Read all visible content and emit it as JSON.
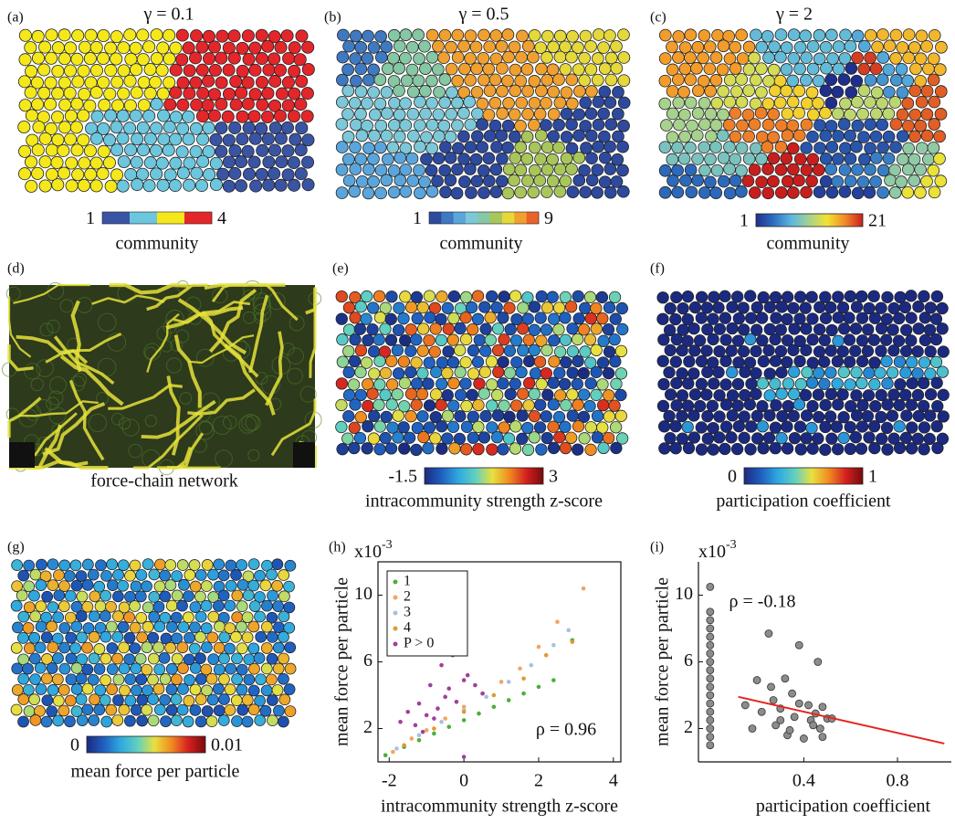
{
  "chart_data": [
    {
      "type": "particle-map",
      "label": "(a)",
      "title": "γ = 0.1",
      "colorbar": {
        "label": "community",
        "clim": [
          1,
          4
        ],
        "ticks": [
          1,
          4
        ],
        "gradient": false,
        "colors": [
          "#3a54a4",
          "#6cc6de",
          "#f4e81a",
          "#e3262a"
        ]
      }
    },
    {
      "type": "particle-map",
      "label": "(b)",
      "title": "γ = 0.5",
      "colorbar": {
        "label": "community",
        "clim": [
          1,
          9
        ],
        "ticks": [
          1,
          9
        ],
        "gradient": false,
        "colors": [
          "#2e4a9e",
          "#3f79c2",
          "#5aa6dc",
          "#7cc8d8",
          "#86c7a4",
          "#a8c65a",
          "#e5d83a",
          "#f0a030",
          "#e8632a"
        ]
      }
    },
    {
      "type": "particle-map",
      "label": "(c)",
      "title": "γ = 2",
      "colorbar": {
        "label": "community",
        "clim": [
          1,
          21
        ],
        "ticks": [
          1,
          21
        ],
        "gradient": true,
        "colors": [
          "#1f2f8c",
          "#2f6fc0",
          "#5cb8e0",
          "#a6d28c",
          "#f2e330",
          "#f28a2a",
          "#c81e1e"
        ]
      }
    },
    {
      "type": "image",
      "label": "(d)",
      "caption": "force-chain network"
    },
    {
      "type": "particle-map",
      "label": "(e)",
      "colorbar": {
        "label": "intracommunity strength z-score",
        "clim": [
          -1.5,
          3
        ],
        "ticks": [
          -1.5,
          3
        ],
        "gradient": true,
        "colors": [
          "#1b2a80",
          "#1f5fc0",
          "#2fa8e0",
          "#60d0c0",
          "#e8e040",
          "#f08a20",
          "#d42020",
          "#7a0a0a"
        ]
      }
    },
    {
      "type": "particle-map",
      "label": "(f)",
      "colorbar": {
        "label": "participation coefficient",
        "clim": [
          0,
          1
        ],
        "ticks": [
          0,
          1
        ],
        "gradient": true,
        "colors": [
          "#1b2a80",
          "#1f5fc0",
          "#2fa8e0",
          "#60d0c0",
          "#e8e040",
          "#f08a20",
          "#d42020",
          "#7a0a0a"
        ]
      }
    },
    {
      "type": "particle-map",
      "label": "(g)",
      "colorbar": {
        "label": "mean force per particle",
        "clim": [
          0,
          0.01
        ],
        "ticks": [
          0,
          0.01
        ],
        "gradient": true,
        "colors": [
          "#1b2a80",
          "#1f5fc0",
          "#2fa8e0",
          "#60d0c0",
          "#e8e040",
          "#f08a20",
          "#d42020",
          "#7a0a0a"
        ]
      }
    },
    {
      "type": "scatter",
      "label": "(h)",
      "y_multiplier_base": "x10",
      "y_multiplier_exponent": "-3",
      "x_label": "intracommunity strength z-score",
      "y_label": "mean force per particle",
      "annotation": "ρ = 0.96",
      "box": true,
      "legend": "upper left",
      "xlim": [
        -2.3,
        4.2
      ],
      "xticks": [
        -2,
        0,
        2,
        4
      ],
      "ylim": [
        0,
        12
      ],
      "yticks": [
        2,
        6,
        10
      ],
      "series": [
        {
          "name": "1",
          "color": "#4caf3a",
          "x": [
            -2.1,
            -1.6,
            -1.2,
            -0.8,
            -0.4,
            0,
            0.4,
            0.8,
            1.2,
            1.6,
            2.0,
            2.4,
            2.9
          ],
          "values": [
            0.4,
            0.9,
            1.3,
            1.7,
            2.1,
            2.5,
            2.9,
            3.3,
            3.7,
            4.1,
            4.5,
            4.9,
            7.3
          ]
        },
        {
          "name": "2",
          "color": "#f4a460",
          "x": [
            -1.9,
            -1.4,
            -1.0,
            -0.5,
            0,
            0.5,
            1.0,
            1.5,
            2.0,
            2.5,
            3.2
          ],
          "values": [
            0.6,
            1.4,
            1.9,
            2.6,
            3.3,
            4.1,
            4.8,
            5.6,
            6.9,
            8.4,
            10.4
          ]
        },
        {
          "name": "3",
          "color": "#a8c0e0",
          "x": [
            -1.8,
            -1.2,
            -0.6,
            0,
            0.6,
            1.2,
            1.8,
            2.4,
            2.8
          ],
          "values": [
            0.8,
            1.6,
            2.4,
            3.1,
            3.9,
            4.8,
            5.8,
            7.0,
            7.9
          ]
        },
        {
          "name": "4",
          "color": "#e09a30",
          "x": [
            -1.6,
            -0.8,
            0,
            0.8,
            1.6,
            2.2,
            2.9
          ],
          "values": [
            1.0,
            2.0,
            3.0,
            4.0,
            5.0,
            6.4,
            7.2
          ]
        },
        {
          "name": "P > 0",
          "color": "#a0409a",
          "x": [
            -1.7,
            -1.5,
            -1.3,
            -1.2,
            -1.0,
            -0.9,
            -0.7,
            -0.6,
            -0.5,
            -0.4,
            -0.3,
            -0.2,
            0,
            0.1,
            0.3,
            0.5,
            -1.1,
            -0.8,
            0
          ],
          "values": [
            2.4,
            3.0,
            2.2,
            3.5,
            2.8,
            4.6,
            3.2,
            5.8,
            3.9,
            4.4,
            6.4,
            3.6,
            4.9,
            5.2,
            4.6,
            4.1,
            1.8,
            2.6,
            0.3
          ]
        }
      ]
    },
    {
      "type": "scatter",
      "label": "(i)",
      "y_multiplier_base": "x10",
      "y_multiplier_exponent": "-3",
      "x_label": "participation coefficient",
      "y_label": "mean force per particle",
      "annotation": "ρ = -0.18",
      "box": false,
      "xlim": [
        -0.05,
        1.03
      ],
      "xticks": [
        0.4,
        0.8
      ],
      "ylim": [
        0,
        12
      ],
      "yticks": [
        2,
        6,
        10
      ],
      "color": "#8c8c8c",
      "x": [
        0,
        0,
        0,
        0,
        0,
        0,
        0,
        0,
        0,
        0,
        0,
        0,
        0,
        0,
        0,
        0,
        0,
        0,
        0.15,
        0.18,
        0.22,
        0.25,
        0.26,
        0.28,
        0.3,
        0.32,
        0.33,
        0.35,
        0.36,
        0.38,
        0.4,
        0.42,
        0.43,
        0.45,
        0.46,
        0.47,
        0.48,
        0.5,
        0.52,
        0.2,
        0.3,
        0.38,
        0.44,
        0.48,
        0.34,
        0.27
      ],
      "values": [
        1.0,
        1.5,
        2.0,
        2.5,
        3.0,
        3.5,
        4.0,
        4.5,
        5.0,
        5.5,
        6.0,
        6.5,
        7.0,
        7.5,
        8.0,
        8.5,
        9.0,
        10.5,
        3.4,
        2.0,
        3.0,
        7.7,
        4.5,
        2.2,
        3.2,
        5.0,
        1.6,
        4.1,
        2.7,
        7.0,
        1.4,
        3.4,
        2.5,
        2.9,
        6.0,
        2.0,
        3.3,
        2.6,
        2.6,
        4.9,
        2.5,
        3.5,
        2.2,
        1.5,
        1.9,
        3.7
      ],
      "fit": {
        "color": "#e8231e",
        "x": [
          0.12,
          1.0
        ],
        "y": [
          3.9,
          1.1
        ]
      }
    }
  ]
}
